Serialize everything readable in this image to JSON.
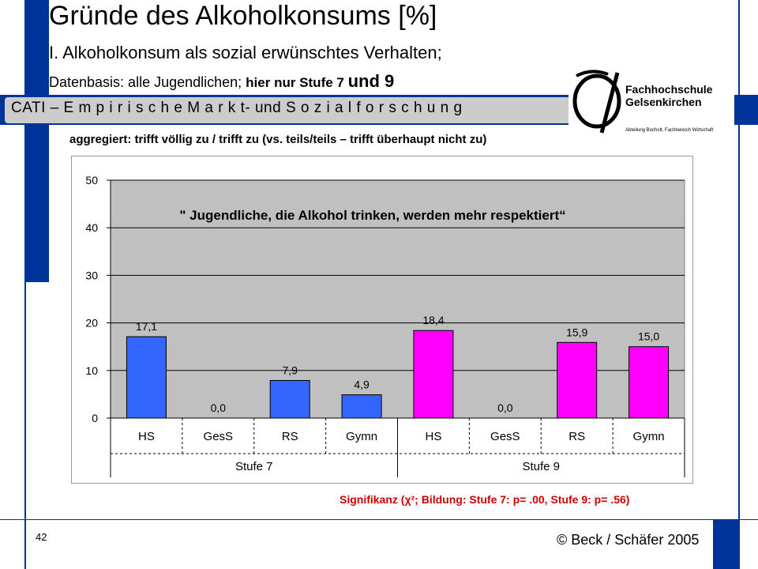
{
  "header": {
    "title": "Gründe des Alkoholkonsums  [%]",
    "subtitle": "I. Alkoholkonsum als sozial erwünschtes Verhalten;",
    "basis_prefix": "Datenbasis: alle Jugendlichen; ",
    "basis_bold": "hier nur Stufe 7 ",
    "basis_bold_large": "und 9",
    "cati_banner": "CATI – E m p i r i s c h e  M a r k t- und S o z i a l f o r s c h u n g",
    "aggregated_note": "aggregiert: trifft völlig zu / trifft zu (vs. teils/teils – trifft überhaupt nicht zu)"
  },
  "logo": {
    "line1": "Fachhochschule",
    "line2": "Gelsenkirchen",
    "line3": "Abteilung Bocholt, Fachbereich Wirtschaft"
  },
  "chart_data": {
    "type": "bar",
    "title": "\" Jugendliche, die Alkohol trinken, werden mehr respektiert“",
    "categories": [
      "HS",
      "GesS",
      "RS",
      "Gymn",
      "HS",
      "GesS",
      "RS",
      "Gymn"
    ],
    "groups": [
      {
        "label": "Stufe 7",
        "span": [
          0,
          3
        ]
      },
      {
        "label": "Stufe 9",
        "span": [
          4,
          7
        ]
      }
    ],
    "values": [
      17.1,
      0.0,
      7.9,
      4.9,
      18.4,
      0.0,
      15.9,
      15.0
    ],
    "value_labels": [
      "17,1",
      "0,0",
      "7,9",
      "4,9",
      "18,4",
      "0,0",
      "15,9",
      "15,0"
    ],
    "colors": [
      "#3366ff",
      "#3366ff",
      "#3366ff",
      "#3366ff",
      "#ff00ff",
      "#ff00ff",
      "#ff00ff",
      "#ff00ff"
    ],
    "plot_background": "#c0c0c0",
    "ylim": [
      0,
      50
    ],
    "yticks": [
      0,
      10,
      20,
      30,
      40,
      50
    ],
    "grid": true,
    "legend": "none"
  },
  "footer": {
    "significance": "Signifikanz (χ²; Bildung: Stufe 7: p= .00, Stufe 9: p= .56)",
    "page_number": "42",
    "copyright": "© Beck / Schäfer 2005"
  },
  "colors": {
    "brand_blue": "#003399",
    "banner_gray": "#cccccc",
    "significance_red": "#cc0000"
  }
}
